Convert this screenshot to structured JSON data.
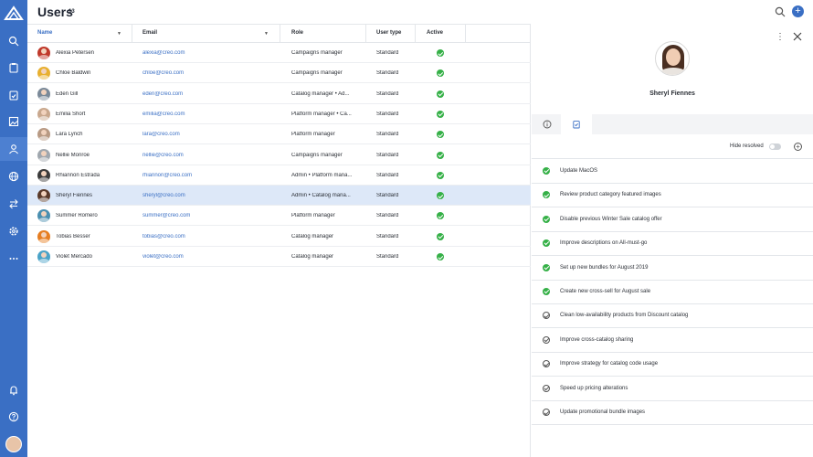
{
  "header": {
    "title": "Users",
    "count": "13"
  },
  "colors": {
    "sidebar": "#3a6fc4",
    "accent": "#3a6fc4",
    "success": "#35b047",
    "selected_row": "#dde8f8"
  },
  "sidebar": {
    "items": [
      {
        "icon": "search-icon"
      },
      {
        "icon": "clipboard-icon"
      },
      {
        "icon": "clipboard-check-icon"
      },
      {
        "icon": "image-icon"
      },
      {
        "icon": "user-icon",
        "active": true
      },
      {
        "icon": "globe-icon"
      },
      {
        "icon": "transfer-icon"
      },
      {
        "icon": "gear-icon"
      },
      {
        "icon": "more-icon"
      },
      {
        "icon": "bell-icon"
      },
      {
        "icon": "help-icon"
      }
    ]
  },
  "table": {
    "columns": {
      "name": "Name",
      "email": "Email",
      "role": "Role",
      "user_type": "User type",
      "active": "Active"
    },
    "rows": [
      {
        "name": "Alexia Petersen",
        "email": "alexia@creo.com",
        "role": "Campaigns manager",
        "user_type": "Standard",
        "active": true,
        "color": "#c0392b"
      },
      {
        "name": "Chloe Baldwin",
        "email": "chloe@creo.com",
        "role": "Campaigns manager",
        "user_type": "Standard",
        "active": true,
        "color": "#e8b030"
      },
      {
        "name": "Eden Gill",
        "email": "eden@creo.com",
        "role": "Catalog manager • Ad...",
        "user_type": "Standard",
        "active": true,
        "color": "#7b8a99"
      },
      {
        "name": "Emilia Short",
        "email": "emilia@creo.com",
        "role": "Platform manager • Ca...",
        "user_type": "Standard",
        "active": true,
        "color": "#c9a88e"
      },
      {
        "name": "Lara Lynch",
        "email": "lara@creo.com",
        "role": "Platform manager",
        "user_type": "Standard",
        "active": true,
        "color": "#b89a84"
      },
      {
        "name": "Nellie Monroe",
        "email": "nellie@creo.com",
        "role": "Campaigns manager",
        "user_type": "Standard",
        "active": true,
        "color": "#a0a7ae"
      },
      {
        "name": "Rhiannon Estrada",
        "email": "rhiannon@creo.com",
        "role": "Admin • Platform mana...",
        "user_type": "Standard",
        "active": true,
        "color": "#3b3b3b"
      },
      {
        "name": "Sheryl Fiennes",
        "email": "sheryl@creo.com",
        "role": "Admin • Catalog mana...",
        "user_type": "Standard",
        "active": true,
        "color": "#5a3a2a",
        "selected": true
      },
      {
        "name": "Summer Romero",
        "email": "summer@creo.com",
        "role": "Platform manager",
        "user_type": "Standard",
        "active": true,
        "color": "#4a8fb0"
      },
      {
        "name": "Tobias Besser",
        "email": "tobias@creo.com",
        "role": "Catalog manager",
        "user_type": "Standard",
        "active": true,
        "color": "#e67e22"
      },
      {
        "name": "Violet Mercado",
        "email": "violet@creo.com",
        "role": "Catalog manager",
        "user_type": "Standard",
        "active": true,
        "color": "#4aa3c8"
      }
    ]
  },
  "panel": {
    "profile_name": "Sheryl Fiennes",
    "hide_resolved_label": "Hide resolved",
    "tasks": [
      {
        "title": "Update MacOS",
        "done": true
      },
      {
        "title": "Review product category featured images",
        "done": true
      },
      {
        "title": "Disable previous Winter Sale catalog offer",
        "done": true
      },
      {
        "title": "Improve descriptions on All-must-go",
        "done": true
      },
      {
        "title": "Set up new bundles for August 2019",
        "done": true
      },
      {
        "title": "Create new cross-sell for August sale",
        "done": true
      },
      {
        "title": "Clean low-availability products from Discount catalog",
        "done": false
      },
      {
        "title": "Improve cross-catalog sharing",
        "done": false
      },
      {
        "title": "Improve strategy for catalog code usage",
        "done": false
      },
      {
        "title": "Speed up pricing alterations",
        "done": false
      },
      {
        "title": "Update promotional bundle images",
        "done": false
      }
    ]
  }
}
